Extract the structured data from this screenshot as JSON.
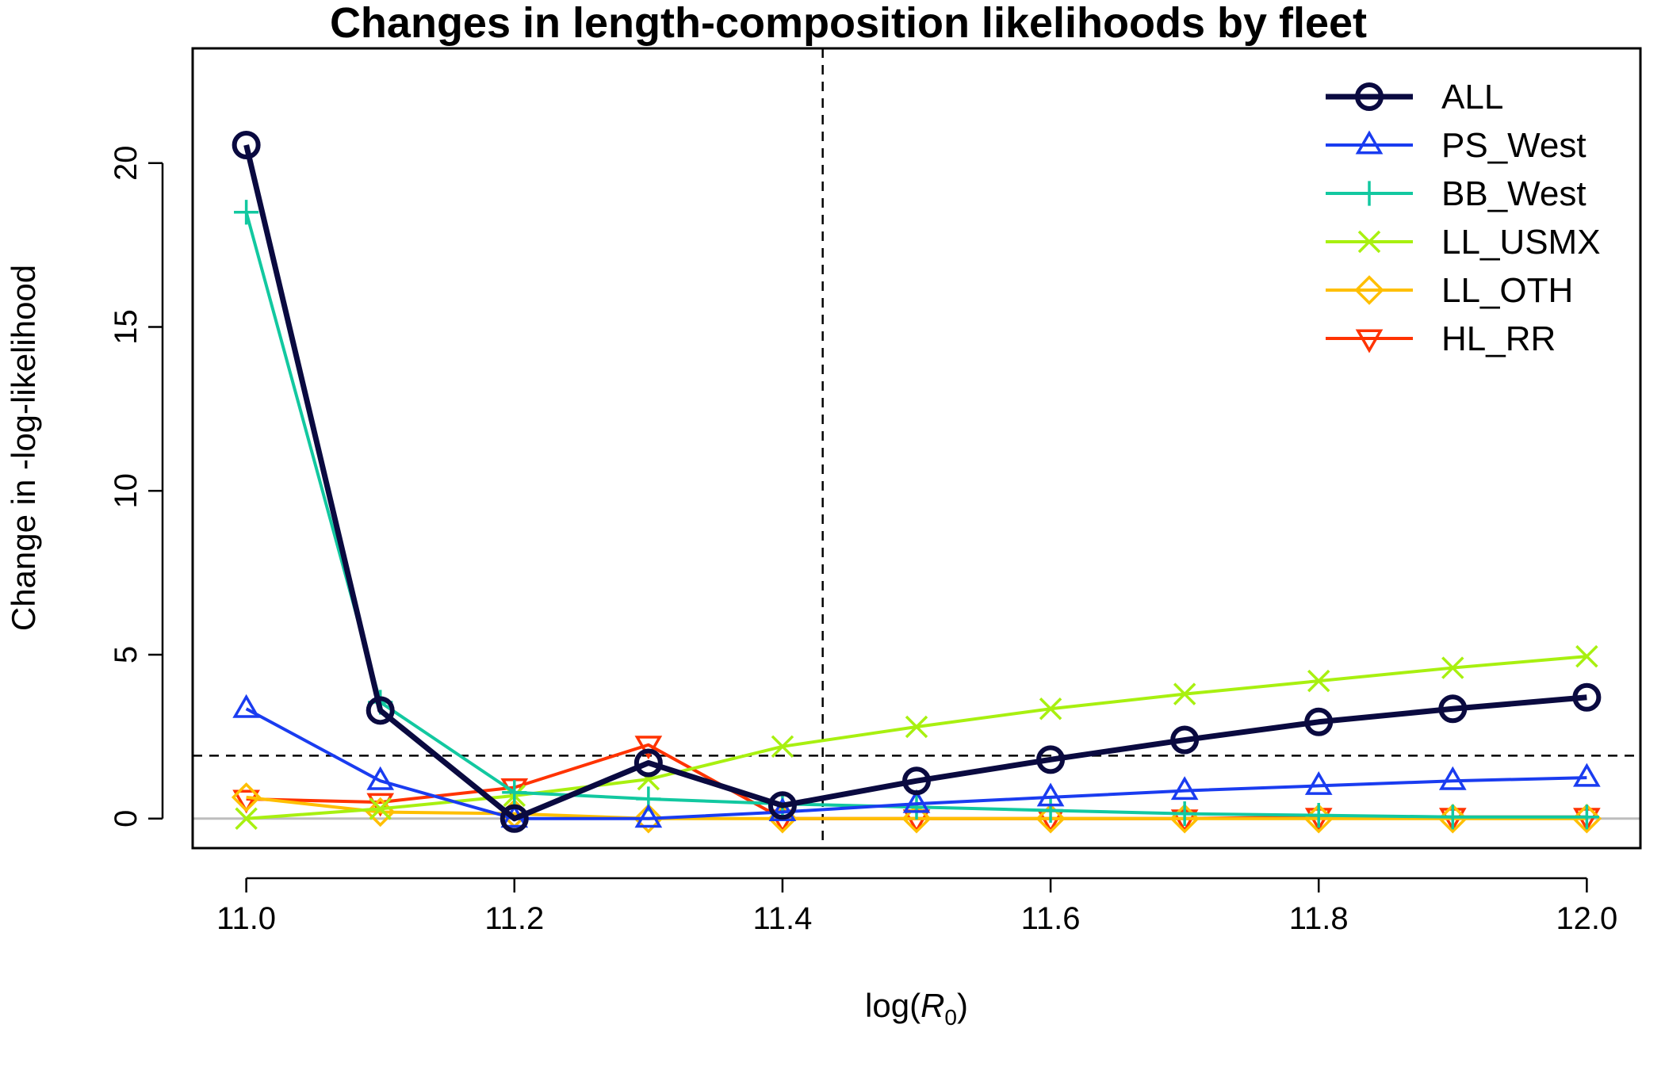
{
  "chart_data": {
    "type": "line",
    "title": "Changes in length-composition likelihoods by fleet",
    "xlabel": "log(R0)",
    "xlabel_parts": {
      "prefix": "log(",
      "symbol": "R",
      "subscript": "0",
      "suffix": ")"
    },
    "ylabel": "Change in -log-likelihood",
    "xlim": [
      10.96,
      12.04
    ],
    "ylim": [
      -0.9,
      23.5
    ],
    "x_ticks": [
      "11.0",
      "11.2",
      "11.4",
      "11.6",
      "11.8",
      "12.0"
    ],
    "y_ticks": [
      "0",
      "5",
      "10",
      "15",
      "20"
    ],
    "reference_lines": {
      "vertical_x": 11.43,
      "horizontal_y": 1.92,
      "zero_line_y": 0
    },
    "legend_position": "top-right",
    "x": [
      11.0,
      11.1,
      11.2,
      11.3,
      11.4,
      11.5,
      11.6,
      11.7,
      11.8,
      11.9,
      12.0
    ],
    "series": [
      {
        "name": "ALL",
        "color": "#0a0a40",
        "marker": "circle",
        "values": [
          20.55,
          3.3,
          0.0,
          1.7,
          0.4,
          1.15,
          1.8,
          2.4,
          2.95,
          3.35,
          3.7
        ]
      },
      {
        "name": "PS_West",
        "color": "#1a3cf0",
        "marker": "triangle-up",
        "values": [
          3.35,
          1.15,
          0.0,
          0.0,
          0.2,
          0.45,
          0.65,
          0.85,
          1.0,
          1.15,
          1.25
        ]
      },
      {
        "name": "BB_West",
        "color": "#12c8a0",
        "marker": "plus",
        "values": [
          18.5,
          3.55,
          0.8,
          0.6,
          0.45,
          0.35,
          0.25,
          0.15,
          0.1,
          0.05,
          0.05
        ]
      },
      {
        "name": "LL_USMX",
        "color": "#a8f010",
        "marker": "cross",
        "values": [
          0.0,
          0.3,
          0.7,
          1.2,
          2.2,
          2.8,
          3.35,
          3.8,
          4.2,
          4.6,
          4.95
        ]
      },
      {
        "name": "LL_OTH",
        "color": "#ffbf00",
        "marker": "diamond",
        "values": [
          0.65,
          0.2,
          0.15,
          0.0,
          0.0,
          0.0,
          0.0,
          0.0,
          0.0,
          0.0,
          0.0
        ]
      },
      {
        "name": "HL_RR",
        "color": "#ff3300",
        "marker": "triangle-down",
        "values": [
          0.6,
          0.5,
          0.95,
          2.25,
          0.0,
          0.0,
          0.0,
          0.0,
          0.05,
          0.05,
          0.05
        ]
      }
    ]
  }
}
